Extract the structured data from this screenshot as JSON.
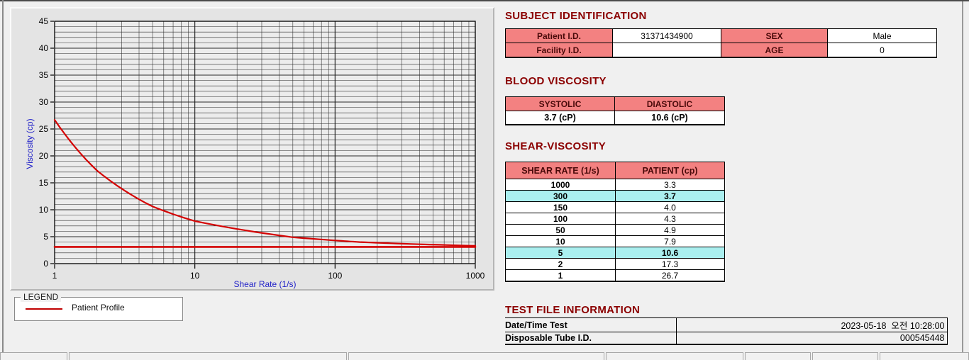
{
  "colors": {
    "title_red": "#8B0000",
    "header_pink": "#F38181",
    "header_text": "#4A0A0A",
    "highlight_cyan": "#AAEFEF",
    "axis_label_blue": "#2121C8",
    "series_red": "#D40404",
    "panel_bg": "#E4E4E4",
    "plot_bg": "#ECECEC"
  },
  "chart_data": {
    "type": "line",
    "title": "",
    "xlabel": "Shear Rate (1/s)",
    "ylabel": "Viscosity (cp)",
    "x_scale": "log",
    "xlim": [
      1,
      1000
    ],
    "ylim": [
      0,
      45
    ],
    "x_ticks": [
      1,
      10,
      100,
      1000
    ],
    "y_ticks": [
      0,
      5,
      10,
      15,
      20,
      25,
      30,
      35,
      40,
      45
    ],
    "grid": "on (log minor verticals, 1-unit horizontals)",
    "series": [
      {
        "name": "Patient Profile",
        "color": "#D40404",
        "width": 2.2,
        "x": [
          1,
          2,
          5,
          10,
          50,
          100,
          150,
          300,
          1000
        ],
        "y": [
          26.7,
          17.3,
          10.6,
          7.9,
          4.9,
          4.3,
          4.0,
          3.7,
          3.3
        ]
      },
      {
        "name": "high-shear asymptote line",
        "color": "#D40404",
        "width": 2.6,
        "x": [
          1,
          1000
        ],
        "y": [
          3.1,
          3.1
        ]
      }
    ],
    "legend": {
      "title": "LEGEND",
      "position": "below-left",
      "entries": [
        {
          "label": "Patient Profile",
          "color": "#C00000"
        }
      ]
    }
  },
  "sections": {
    "subject": {
      "title": "SUBJECT IDENTIFICATION",
      "rows": [
        {
          "label1": "Patient I.D.",
          "value1": "31371434900",
          "label2": "SEX",
          "value2": "Male"
        },
        {
          "label1": "Facility I.D.",
          "value1": "",
          "label2": "AGE",
          "value2": "0"
        }
      ]
    },
    "blood": {
      "title": "BLOOD VISCOSITY",
      "headers": [
        "SYSTOLIC",
        "DIASTOLIC"
      ],
      "values": [
        "3.7 (cP)",
        "10.6 (cP)"
      ]
    },
    "shear": {
      "title": "SHEAR-VISCOSITY",
      "headers": [
        "SHEAR RATE (1/s)",
        "PATIENT (cp)"
      ],
      "rows": [
        {
          "rate": "1000",
          "value": "3.3",
          "highlight": false
        },
        {
          "rate": "300",
          "value": "3.7",
          "highlight": true
        },
        {
          "rate": "150",
          "value": "4.0",
          "highlight": false
        },
        {
          "rate": "100",
          "value": "4.3",
          "highlight": false
        },
        {
          "rate": "50",
          "value": "4.9",
          "highlight": false
        },
        {
          "rate": "10",
          "value": "7.9",
          "highlight": false
        },
        {
          "rate": "5",
          "value": "10.6",
          "highlight": true
        },
        {
          "rate": "2",
          "value": "17.3",
          "highlight": false
        },
        {
          "rate": "1",
          "value": "26.7",
          "highlight": false
        }
      ]
    },
    "test_file": {
      "title": "TEST FILE INFORMATION",
      "rows": [
        {
          "label": "Date/Time Test",
          "value": "2023-05-18  오전 10:28:00"
        },
        {
          "label": "Disposable Tube I.D.",
          "value": "000545448"
        }
      ]
    }
  }
}
